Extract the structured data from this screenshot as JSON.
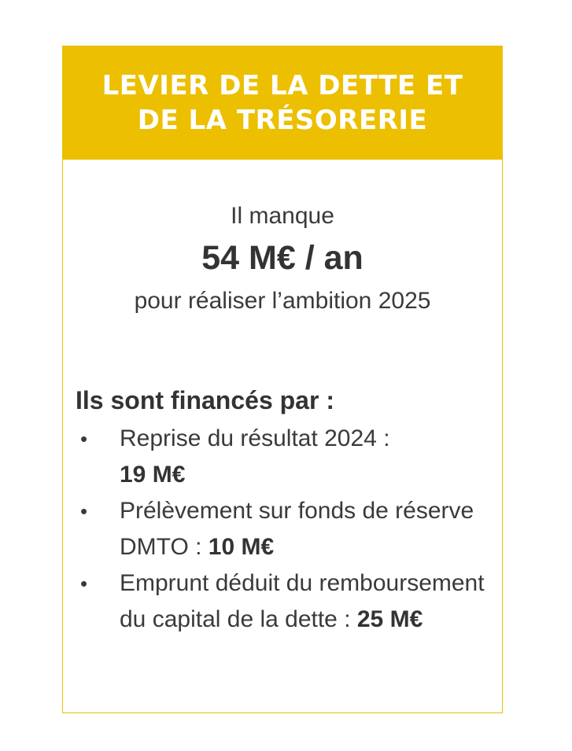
{
  "header": {
    "title": "LEVIER DE LA DETTE ET DE LA TRÉSORERIE"
  },
  "intro": {
    "line1": "Il manque",
    "amount": "54 M€ / an",
    "line2": "pour réaliser l’ambition 2025"
  },
  "financing": {
    "heading": "Ils sont financés par :",
    "bullet_symbol": "•",
    "items": [
      {
        "text": "Reprise du résultat 2024 : ",
        "amount": "19 M€"
      },
      {
        "text": "Prélèvement sur fonds de réserve DMTO : ",
        "amount": "10 M€"
      },
      {
        "text": "Emprunt déduit du remboursement du capital de la dette : ",
        "amount": "25 M€"
      }
    ]
  },
  "colors": {
    "header_background": "#ecbf00",
    "border": "#e8bf00",
    "title_text": "#ffffff",
    "body_text": "#3a3a3a"
  }
}
